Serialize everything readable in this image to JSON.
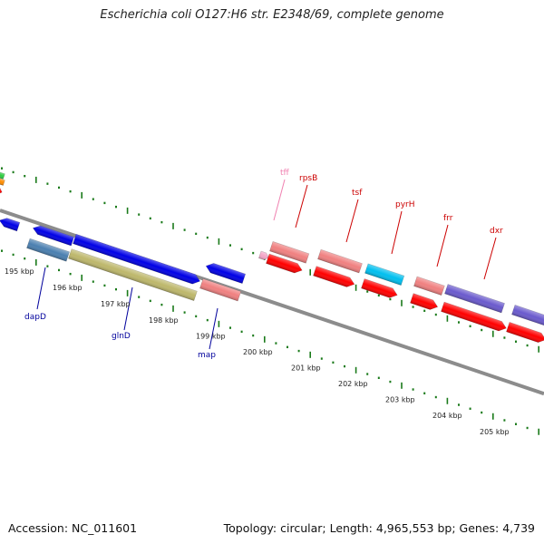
{
  "title": "Escherichia coli O127:H6 str. E2348/69, complete genome",
  "footer": {
    "accession": "Accession: NC_011601",
    "topology": "Topology: circular; Length: 4,965,553 bp; Genes: 4,739"
  },
  "colors": {
    "backbone": "#8c8c8c",
    "tick": "#1a7a1a",
    "red": "#ff0000",
    "salmon": "#f08080",
    "blue": "#0000e6",
    "steelblue": "#4a7fb0",
    "olive": "#bdb76b",
    "cyan": "#00bfef",
    "purple": "#6a5acd",
    "pink": "#f4a6c8",
    "label_red": "#cc0000",
    "label_blue": "#00009c",
    "label_pink": "#f080b0"
  },
  "scale": {
    "labels": [
      "195 kbp",
      "196 kbp",
      "197 kbp",
      "198 kbp",
      "199 kbp",
      "200 kbp",
      "201 kbp",
      "202 kbp",
      "203 kbp",
      "204 kbp",
      "205 kbp"
    ]
  },
  "gene_labels": {
    "top": [
      {
        "text": "tff",
        "color": "label_pink"
      },
      {
        "text": "rpsB",
        "color": "label_red"
      },
      {
        "text": "tsf",
        "color": "label_red"
      },
      {
        "text": "pyrH",
        "color": "label_red"
      },
      {
        "text": "frr",
        "color": "label_red"
      },
      {
        "text": "dxr",
        "color": "label_red"
      }
    ],
    "bottom": [
      {
        "text": "dapD",
        "color": "label_blue"
      },
      {
        "text": "glnD",
        "color": "label_blue"
      },
      {
        "text": "map",
        "color": "label_blue"
      }
    ]
  }
}
